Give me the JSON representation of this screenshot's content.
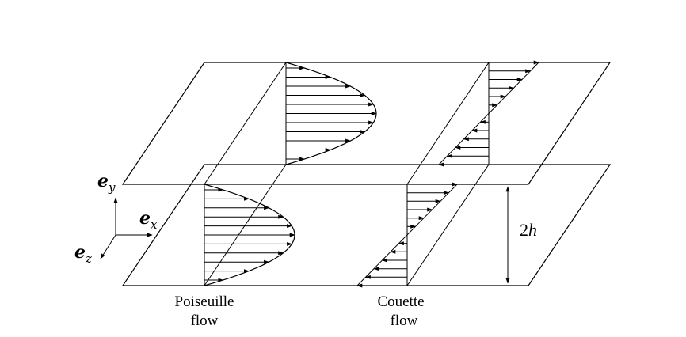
{
  "axes": {
    "ey": {
      "symbol": "e",
      "sub": "y"
    },
    "ex": {
      "symbol": "e",
      "sub": "x"
    },
    "ez": {
      "symbol": "e",
      "sub": "z"
    }
  },
  "labels": {
    "poiseuille_line1": "Poiseuille",
    "poiseuille_line2": "flow",
    "couette_line1": "Couette",
    "couette_line2": "flow",
    "gap_value": "2",
    "gap_var": "h"
  },
  "profiles": {
    "poiseuille": {
      "shape": "parabolic",
      "arrow_count": 11
    },
    "couette": {
      "shape": "linear",
      "arrow_count": 13
    }
  }
}
